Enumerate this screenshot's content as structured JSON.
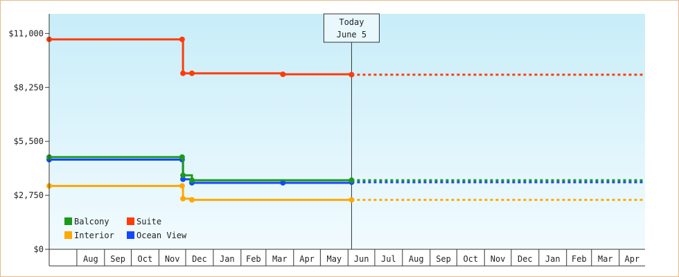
{
  "chart_data": {
    "type": "line",
    "step": true,
    "y_ticks": [
      {
        "value": 0,
        "label": "$0"
      },
      {
        "value": 2750,
        "label": "$2,750"
      },
      {
        "value": 5500,
        "label": "$5,500"
      },
      {
        "value": 8250,
        "label": "$8,250"
      },
      {
        "value": 11000,
        "label": "$11,000"
      }
    ],
    "ylim": [
      0,
      12000
    ],
    "x_months": [
      "Aug",
      "Sep",
      "Oct",
      "Nov",
      "Dec",
      "Jan",
      "Feb",
      "Mar",
      "Apr",
      "May",
      "Jun",
      "Jul",
      "Aug",
      "Sep",
      "Oct",
      "Nov",
      "Dec",
      "Jan",
      "Feb",
      "Mar",
      "Apr"
    ],
    "xlim": [
      "2024-07-01",
      "2026-04-30"
    ],
    "today": {
      "label": "Today",
      "date_label": "June 5",
      "date": "2025-06-05"
    },
    "series": [
      {
        "name": "Suite",
        "color": "#ff3b0a",
        "points": [
          [
            "2024-07-01",
            10700
          ],
          [
            "2024-11-27",
            10700
          ],
          [
            "2024-11-28",
            8970
          ],
          [
            "2024-12-08",
            8970
          ],
          [
            "2025-03-20",
            8920
          ],
          [
            "2025-06-05",
            8900
          ]
        ],
        "forecast": 8900
      },
      {
        "name": "Balcony",
        "color": "#1a9a1a",
        "points": [
          [
            "2024-07-01",
            4700
          ],
          [
            "2024-11-27",
            4700
          ],
          [
            "2024-11-28",
            3770
          ],
          [
            "2024-12-08",
            3520
          ],
          [
            "2025-06-05",
            3520
          ]
        ],
        "forecast": 3520
      },
      {
        "name": "Ocean View",
        "color": "#1447ff",
        "points": [
          [
            "2024-07-01",
            4570
          ],
          [
            "2024-11-27",
            4570
          ],
          [
            "2024-11-28",
            3570
          ],
          [
            "2024-12-08",
            3390
          ],
          [
            "2025-03-20",
            3390
          ],
          [
            "2025-06-05",
            3420
          ]
        ],
        "forecast": 3420
      },
      {
        "name": "Interior",
        "color": "#ffa800",
        "points": [
          [
            "2024-07-01",
            3230
          ],
          [
            "2024-11-27",
            3230
          ],
          [
            "2024-11-28",
            2580
          ],
          [
            "2024-12-08",
            2520
          ],
          [
            "2025-06-05",
            2520
          ]
        ],
        "forecast": 2520
      }
    ],
    "legend": [
      {
        "name": "Balcony",
        "color": "#1a9a1a"
      },
      {
        "name": "Suite",
        "color": "#ff3b0a"
      },
      {
        "name": "Interior",
        "color": "#ffa800"
      },
      {
        "name": "Ocean View",
        "color": "#1447ff"
      }
    ],
    "legend_position": "bottom-left",
    "grid": false
  }
}
